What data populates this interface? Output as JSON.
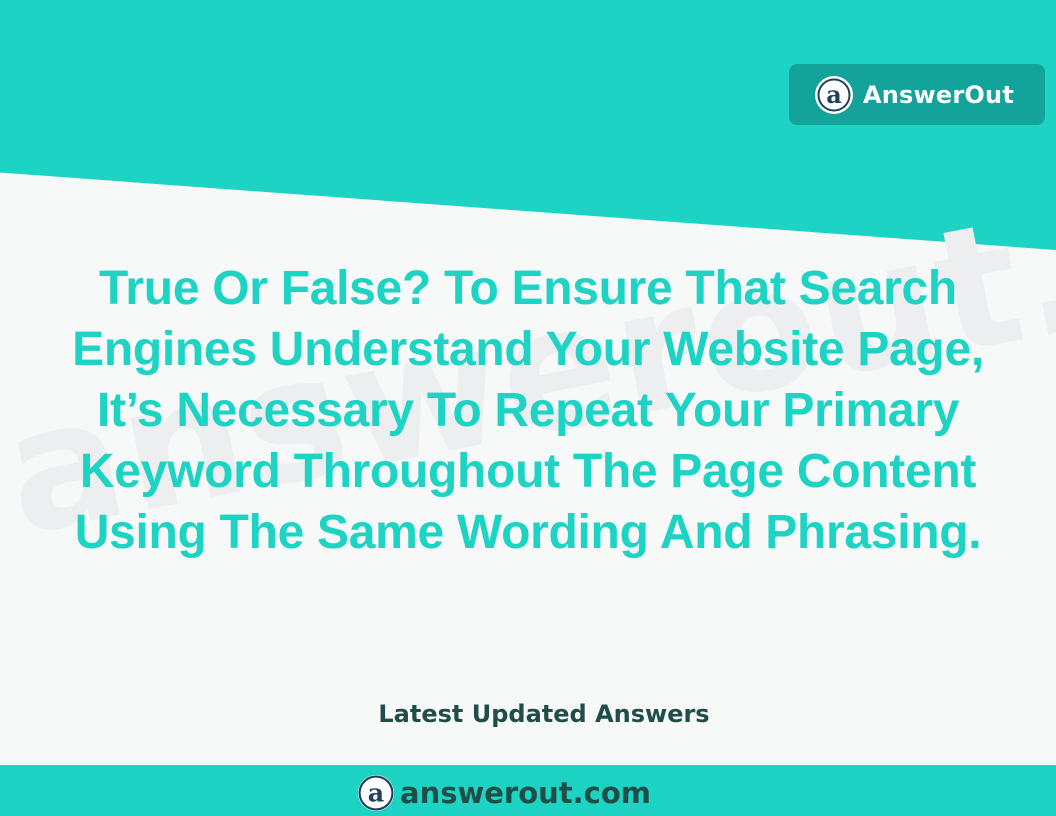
{
  "brand": {
    "badge_label": "AnswerOut",
    "logo_icon": "answerout-a-logo-icon",
    "accent_color": "#1dd3c3",
    "badge_color": "#14a39b",
    "dark_text_color": "#1f4d47"
  },
  "watermark": {
    "text": "answerout.com"
  },
  "question": {
    "lines": [
      "True Or False? To Ensure That Search",
      "Engines Understand Your Website Page,",
      "It’s Necessary To Repeat Your Primary",
      "Keyword Throughout The Page Content",
      "Using The Same Wording And Phrasing."
    ]
  },
  "footer": {
    "tagline": "Latest Updated Answers",
    "site": "answerout.com"
  }
}
